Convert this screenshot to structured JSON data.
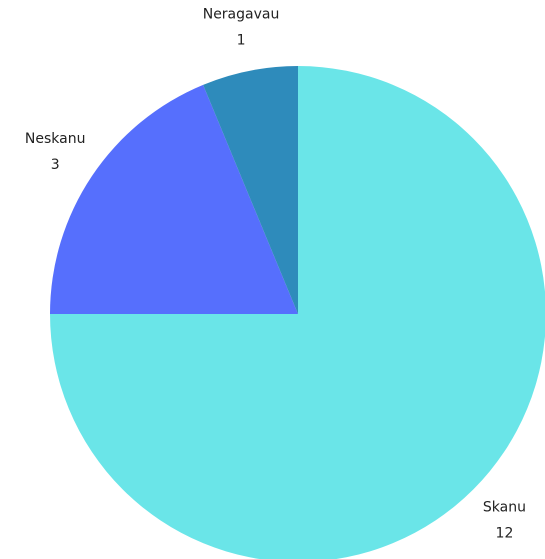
{
  "chart_data": {
    "type": "pie",
    "categories": [
      "Skanu",
      "Neskanu",
      "Neragavau"
    ],
    "values": [
      12,
      3,
      1
    ],
    "colors": [
      "#6ae5e8",
      "#566ffd",
      "#2e8bbb"
    ]
  }
}
